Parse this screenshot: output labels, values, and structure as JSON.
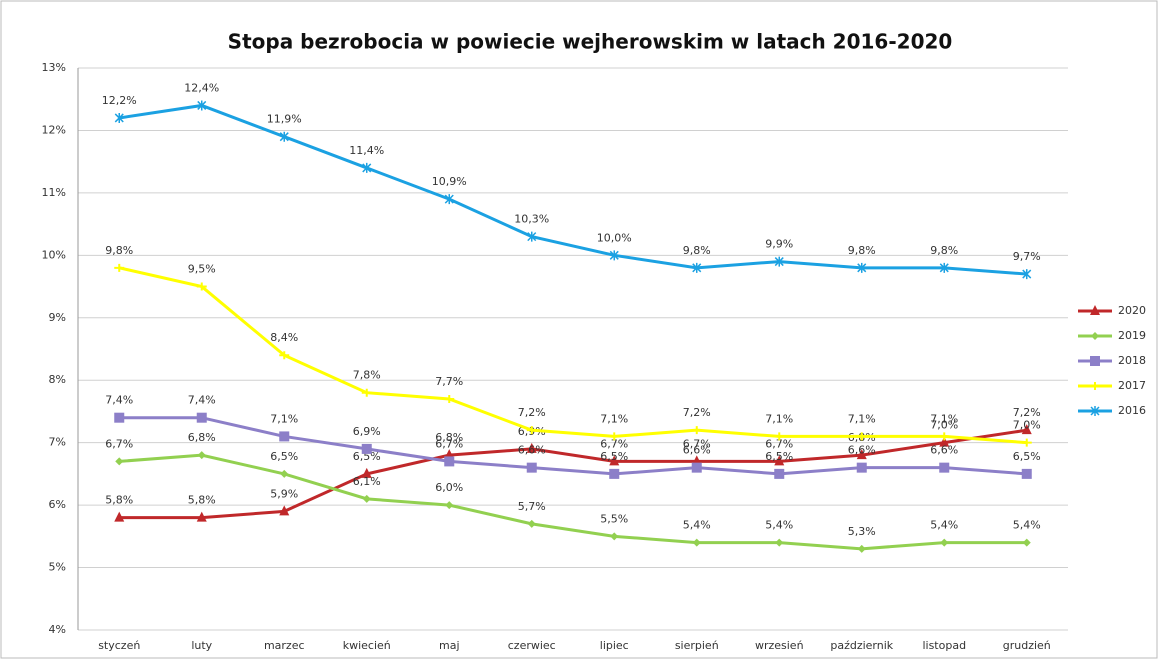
{
  "chart_data": {
    "type": "line",
    "title": "Stopa bezrobocia w powiecie wejherowskim w latach 2016-2020",
    "categories": [
      "styczeń",
      "luty",
      "marzec",
      "kwiecień",
      "maj",
      "czerwiec",
      "lipiec",
      "sierpień",
      "wrzesień",
      "październik",
      "listopad",
      "grudzień"
    ],
    "ylim": [
      4,
      13
    ],
    "yticks": [
      {
        "value": 4,
        "label": "4%"
      },
      {
        "value": 5,
        "label": "5%"
      },
      {
        "value": 6,
        "label": "6%"
      },
      {
        "value": 7,
        "label": "7%"
      },
      {
        "value": 8,
        "label": "8%"
      },
      {
        "value": 9,
        "label": "9%"
      },
      {
        "value": 10,
        "label": "10%"
      },
      {
        "value": 11,
        "label": "11%"
      },
      {
        "value": 12,
        "label": "12%"
      },
      {
        "value": 13,
        "label": "13%"
      }
    ],
    "grid": true,
    "legend": "right",
    "series": [
      {
        "name": "2020",
        "color": "#c0282a",
        "marker": "triangle",
        "values": [
          5.8,
          5.8,
          5.9,
          6.5,
          6.8,
          6.9,
          6.7,
          6.7,
          6.7,
          6.8,
          7.0,
          7.2
        ],
        "value_labels": [
          "5,8%",
          "5,8%",
          "5,9%",
          "6,5%",
          "6,8%",
          "6,9%",
          "6,7%",
          "6,7%",
          "6,7%",
          "6,8%",
          "7,0%",
          "7,2%"
        ]
      },
      {
        "name": "2019",
        "color": "#92d050",
        "marker": "diamond",
        "values": [
          6.7,
          6.8,
          6.5,
          6.1,
          6.0,
          5.7,
          5.5,
          5.4,
          5.4,
          5.3,
          5.4,
          5.4
        ],
        "value_labels": [
          "6,7%",
          "6,8%",
          "6,5%",
          "6,1%",
          "6,0%",
          "5,7%",
          "5,5%",
          "5,4%",
          "5,4%",
          "5,3%",
          "5,4%",
          "5,4%"
        ]
      },
      {
        "name": "2018",
        "color": "#8c7fc8",
        "marker": "square",
        "values": [
          7.4,
          7.4,
          7.1,
          6.9,
          6.7,
          6.6,
          6.5,
          6.6,
          6.5,
          6.6,
          6.6,
          6.5
        ],
        "value_labels": [
          "7,4%",
          "7,4%",
          "7,1%",
          "6,9%",
          "6,7%",
          "6,6%",
          "6,5%",
          "6,6%",
          "6,5%",
          "6,6%",
          "6,6%",
          "6,5%"
        ]
      },
      {
        "name": "2017",
        "color": "#ffff00",
        "marker": "dash",
        "values": [
          9.8,
          9.5,
          8.4,
          7.8,
          7.7,
          7.2,
          7.1,
          7.2,
          7.1,
          7.1,
          7.1,
          7.0
        ],
        "value_labels": [
          "9,8%",
          "9,5%",
          "8,4%",
          "7,8%",
          "7,7%",
          "7,2%",
          "7,1%",
          "7,2%",
          "7,1%",
          "7,1%",
          "7,1%",
          "7,0%"
        ]
      },
      {
        "name": "2016",
        "color": "#1ba1e2",
        "marker": "star",
        "values": [
          12.2,
          12.4,
          11.9,
          11.4,
          10.9,
          10.3,
          10.0,
          9.8,
          9.9,
          9.8,
          9.8,
          9.7
        ],
        "value_labels": [
          "12,2%",
          "12,4%",
          "11,9%",
          "11,4%",
          "10,9%",
          "10,3%",
          "10,0%",
          "9,8%",
          "9,9%",
          "9,8%",
          "9,8%",
          "9,7%"
        ]
      }
    ]
  }
}
